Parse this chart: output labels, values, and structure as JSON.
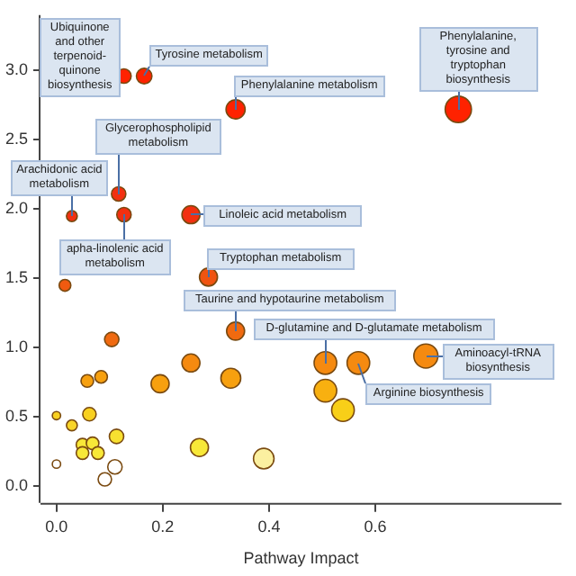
{
  "chart_data": {
    "type": "bubble",
    "xlabel": "Pathway Impact",
    "x": [
      0.127,
      0.165,
      0.337,
      0.756,
      0.117,
      0.029,
      0.127,
      0.253,
      0.286,
      0.337,
      0.506,
      0.695,
      0.568,
      0.016,
      0.104,
      0.253,
      0.084,
      0.058,
      0.195,
      0.328,
      0.0,
      0.062,
      0.029,
      0.049,
      0.068,
      0.049,
      0.078,
      0.113,
      0.269,
      0.39,
      0.0,
      0.11,
      0.091,
      0.506,
      0.539
    ],
    "values": [
      2.96,
      2.96,
      2.72,
      2.72,
      2.11,
      1.95,
      1.96,
      1.96,
      1.51,
      1.12,
      0.89,
      0.94,
      0.89,
      1.45,
      1.06,
      0.89,
      0.79,
      0.76,
      0.74,
      0.78,
      0.51,
      0.52,
      0.44,
      0.3,
      0.31,
      0.24,
      0.24,
      0.36,
      0.28,
      0.2,
      0.16,
      0.14,
      0.05,
      0.69,
      0.55
    ],
    "sizes": [
      0.3,
      0.35,
      0.53,
      1,
      0.3,
      0.17,
      0.3,
      0.47,
      0.47,
      0.47,
      0.74,
      0.84,
      0.74,
      0.2,
      0.3,
      0.47,
      0.23,
      0.23,
      0.47,
      0.57,
      0.1,
      0.26,
      0.17,
      0.23,
      0.23,
      0.23,
      0.23,
      0.3,
      0.47,
      0.61,
      0.1,
      0.3,
      0.26,
      0.74,
      0.74
    ],
    "colors": [
      "#ff2200",
      "#ff2200",
      "#ff2200",
      "#ff2200",
      "#f23010",
      "#f23010",
      "#f23010",
      "#f23010",
      "#f05410",
      "#f06a10",
      "#f58a10",
      "#f58a10",
      "#f58a10",
      "#f05a10",
      "#f06a10",
      "#f58a10",
      "#f7a00f",
      "#f7a00f",
      "#f7a00f",
      "#f7a00f",
      "#f8d020",
      "#f8d020",
      "#f8d428",
      "#f8e838",
      "#f8e838",
      "#f8e838",
      "#f8e838",
      "#f8e030",
      "#f8e838",
      "#fbf0a0",
      "#ffffff",
      "#ffffff",
      "#ffffff",
      "#f8b010",
      "#f8cf18"
    ],
    "xlim": [
      -0.03,
      0.95
    ],
    "xticks": [
      {
        "value": 0,
        "label": "0.0"
      },
      {
        "value": 0.2,
        "label": "0.2"
      },
      {
        "value": 0.4,
        "label": "0.4"
      },
      {
        "value": 0.6,
        "label": "0.6"
      }
    ],
    "ylim": [
      -0.12,
      3.4
    ],
    "yticks": [
      {
        "value": 0,
        "label": "0.0"
      },
      {
        "value": 0.5,
        "label": "0.5"
      },
      {
        "value": 1,
        "label": "1.0"
      },
      {
        "value": 1.5,
        "label": "1.5"
      },
      {
        "value": 2,
        "label": "2.0"
      },
      {
        "value": 2.5,
        "label": "2.5"
      },
      {
        "value": 3,
        "label": "3.0"
      }
    ],
    "grid": false,
    "legend": false,
    "annotations": [
      {
        "text": "Ubiquinone and other terpenoid-quinone biosynthesis",
        "x": 0.127,
        "y": 2.96
      },
      {
        "text": "Tyrosine metabolism",
        "x": 0.165,
        "y": 2.96
      },
      {
        "text": "Phenylalanine metabolism",
        "x": 0.337,
        "y": 2.72
      },
      {
        "text": "Phenylalanine, tyrosine and tryptophan biosynthesis",
        "x": 0.756,
        "y": 2.72
      },
      {
        "text": "Glycerophospholipid metabolism",
        "x": 0.117,
        "y": 2.11
      },
      {
        "text": "Arachidonic acid metabolism",
        "x": 0.029,
        "y": 1.95
      },
      {
        "text": "apha-linolenic acid metabolism",
        "x": 0.127,
        "y": 1.96
      },
      {
        "text": "Linoleic acid metabolism",
        "x": 0.253,
        "y": 1.96
      },
      {
        "text": "Tryptophan metabolism",
        "x": 0.286,
        "y": 1.51
      },
      {
        "text": "Taurine and hypotaurine metabolism",
        "x": 0.337,
        "y": 1.12
      },
      {
        "text": "D-glutamine and D-glutamate metabolism",
        "x": 0.506,
        "y": 0.89
      },
      {
        "text": "Aminoacyl-tRNA biosynthesis",
        "x": 0.695,
        "y": 0.94
      },
      {
        "text": "Arginine biosynthesis",
        "x": 0.568,
        "y": 0.89
      }
    ]
  }
}
